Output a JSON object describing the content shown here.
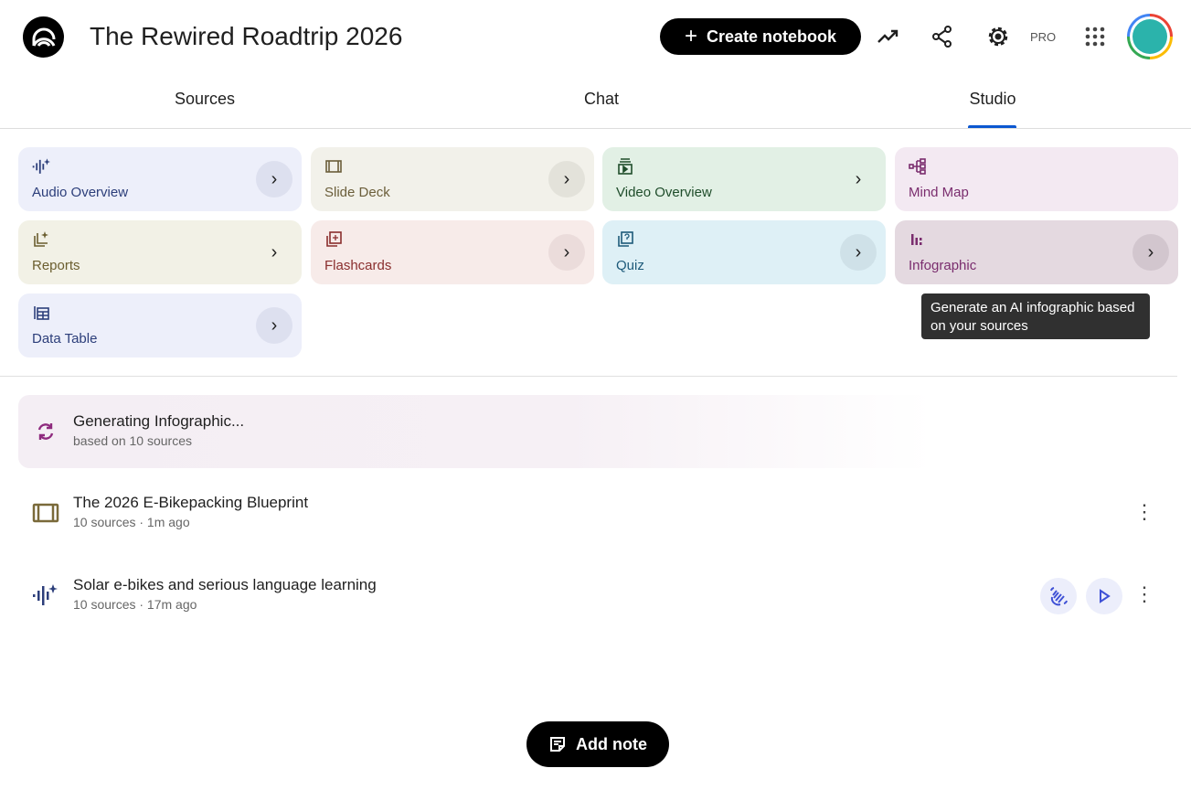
{
  "header": {
    "title": "The Rewired Roadtrip 2026",
    "create_label": "Create notebook",
    "pro_label": "PRO"
  },
  "tabs": [
    {
      "label": "Sources"
    },
    {
      "label": "Chat"
    },
    {
      "label": "Studio",
      "active": true
    }
  ],
  "studio": {
    "cards": [
      {
        "label": "Audio Overview",
        "icon": "audio-sparkle-icon",
        "bg": "#edeffa",
        "color": "#2c3e7a"
      },
      {
        "label": "Slide Deck",
        "icon": "slides-icon",
        "bg": "#f2f1ea",
        "color": "#6b5e3a"
      },
      {
        "label": "Video Overview",
        "icon": "video-icon",
        "bg": "#e2f0e5",
        "color": "#1f4d2b"
      },
      {
        "label": "Mind Map",
        "icon": "mind-map-icon",
        "bg": "#f3e9f2",
        "color": "#7a2d6e"
      },
      {
        "label": "Reports",
        "icon": "reports-icon",
        "bg": "#f2f1e6",
        "color": "#6b5e2f"
      },
      {
        "label": "Flashcards",
        "icon": "flashcards-icon",
        "bg": "#f7ebe9",
        "color": "#8a2e2e"
      },
      {
        "label": "Quiz",
        "icon": "quiz-icon",
        "bg": "#def0f6",
        "color": "#1d5a7a"
      },
      {
        "label": "Infographic",
        "icon": "infographic-icon",
        "bg": "#e4d9e0",
        "color": "#7a2d6e"
      },
      {
        "label": "Data Table",
        "icon": "table-icon",
        "bg": "#edeffa",
        "color": "#2c3e7a"
      }
    ],
    "tooltip": "Generate an AI infographic based on your sources"
  },
  "generating": {
    "title": "Generating Infographic...",
    "subtitle": "based on 10 sources",
    "color": "#8e2a7e"
  },
  "items": [
    {
      "title": "The 2026 E-Bikepacking Blueprint",
      "meta": "10 sources · 1m ago",
      "icon": "slides-icon"
    },
    {
      "title": "Solar e-bikes and serious language learning",
      "meta": "10 sources · 17m ago",
      "icon": "audio-sparkle-icon"
    }
  ],
  "add_note_label": "Add note"
}
